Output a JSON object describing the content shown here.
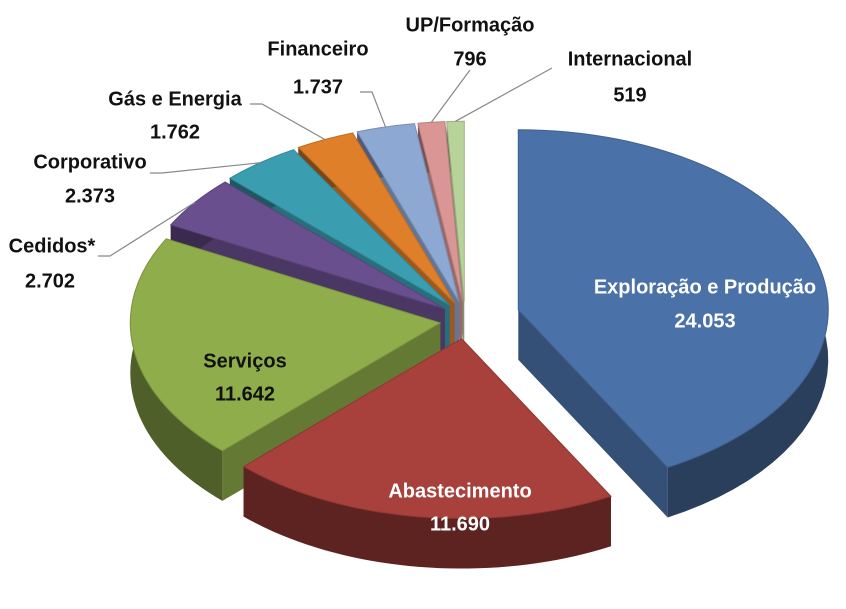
{
  "chart_data": {
    "type": "pie",
    "categories": [
      "Exploração e Produção",
      "Abastecimento",
      "Serviços",
      "Cedidos*",
      "Corporativo",
      "Gás e Energia",
      "Financeiro",
      "UP/Formação",
      "Internacional"
    ],
    "values": [
      24053,
      11690,
      11642,
      2702,
      2373,
      1762,
      1737,
      796,
      519
    ],
    "value_labels": [
      "24.053",
      "11.690",
      "11.642",
      "2.702",
      "2.373",
      "1.762",
      "1.737",
      "796",
      "519"
    ],
    "colors": [
      "#4a72a8",
      "#a8403c",
      "#8fad4a",
      "#6a4f8e",
      "#3b9db0",
      "#e07f2a",
      "#8ea8d4",
      "#d99694",
      "#b8d39a"
    ]
  }
}
